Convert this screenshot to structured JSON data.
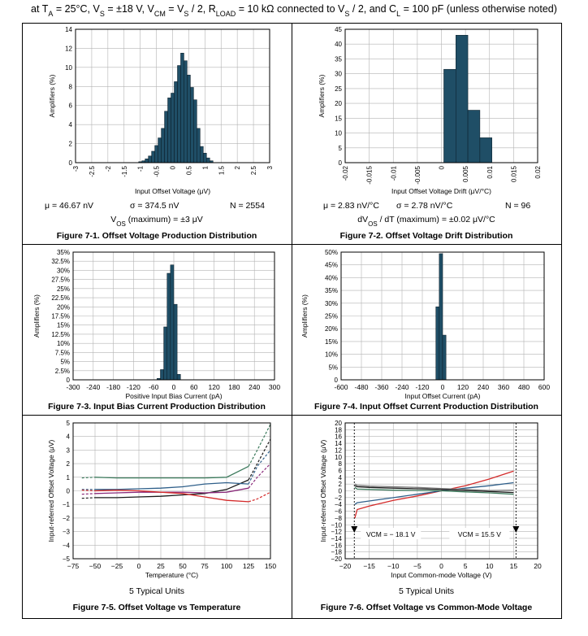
{
  "header": {
    "text": "at Tₐ = 25°C, Vₛ = ±18 V, VCM = VS / 2, RLOAD = 10 kΩ connected to VS / 2, and CL = 100 pF (unless otherwise noted)"
  },
  "colors": {
    "bar": "#1f4e66",
    "grid": "#b3b3b3",
    "frame": "#000000"
  },
  "figures": [
    {
      "id": "f71",
      "caption": "Figure 7-1. Offset Voltage Production Distribution",
      "stats": [
        {
          "text": "μ = 46.67 nV"
        },
        {
          "text": "σ = 374.5 nV"
        },
        {
          "text": "N = 2554"
        }
      ],
      "note": "VOS (maximum) = ±3 μV"
    },
    {
      "id": "f72",
      "caption": "Figure 7-2. Offset Voltage Drift Distribution",
      "stats": [
        {
          "text": "μ = 2.83 nV/°C"
        },
        {
          "text": "σ = 2.78 nV/°C"
        },
        {
          "text": "N = 96"
        }
      ],
      "note": "dVOS / dT (maximum) = ±0.02 μV/°C"
    },
    {
      "id": "f73",
      "caption": "Figure 7-3. Input Bias Current Production Distribution"
    },
    {
      "id": "f74",
      "caption": "Figure 7-4. Input Offset Current Production Distribution"
    },
    {
      "id": "f75",
      "caption": "Figure 7-5. Offset Voltage vs Temperature",
      "note": "5 Typical Units"
    },
    {
      "id": "f76",
      "caption": "Figure 7-6. Offset Voltage vs Common-Mode Voltage",
      "note": "5 Typical Units"
    }
  ],
  "chart_data": [
    {
      "id": "f71",
      "type": "bar",
      "xlabel": "Input Offset Voltage (μV)",
      "ylabel": "Amplifiers (%)",
      "xlim": [
        -3,
        3
      ],
      "ylim": [
        0,
        14
      ],
      "yticks": [
        "0",
        "2",
        "4",
        "6",
        "8",
        "10",
        "12",
        "14"
      ],
      "xticks": [
        "-3",
        "-2.5",
        "-2",
        "-1.5",
        "-1",
        "-0.5",
        "0",
        "0.5",
        "1",
        "1.5",
        "2",
        "2.5",
        "3"
      ],
      "bin_start": -1.05,
      "bin_width": 0.1,
      "values": [
        0.1,
        0.2,
        0.4,
        0.7,
        1.2,
        1.8,
        2.6,
        3.6,
        5.4,
        6.8,
        7.3,
        8.5,
        10.2,
        11.5,
        10.7,
        9.2,
        7.9,
        6.6,
        3.6,
        1.7,
        1.0,
        0.5,
        0.2
      ]
    },
    {
      "id": "f72",
      "type": "bar",
      "xlabel": "Input Offset Voltage Drift (μV/°C)",
      "ylabel": "Amplifiers (%)",
      "xlim": [
        -0.02,
        0.02
      ],
      "ylim": [
        0,
        45
      ],
      "yticks": [
        "0",
        "5",
        "10",
        "15",
        "20",
        "25",
        "30",
        "35",
        "40",
        "45"
      ],
      "xticks": [
        "-0.02",
        "-0.015",
        "-0.01",
        "-0.005",
        "0",
        "0.005",
        "0.01",
        "0.015",
        "0.02"
      ],
      "bin_start": 0.0005,
      "bin_width": 0.0025,
      "values": [
        31.5,
        43,
        17.7,
        8.4
      ]
    },
    {
      "id": "f73",
      "type": "bar",
      "xlabel": "Positive Input Bias Current (pA)",
      "ylabel": "Amplifiers (%)",
      "xlim": [
        -300,
        300
      ],
      "ylim": [
        0,
        35
      ],
      "yticks": [
        "0",
        "2.5%",
        "5%",
        "7.5%",
        "10%",
        "12.5%",
        "15%",
        "17.5%",
        "20%",
        "22.5%",
        "25%",
        "27.5%",
        "30%",
        "32.5%",
        "35%"
      ],
      "xticks": [
        "-300",
        "-240",
        "-180",
        "-120",
        "-60",
        "0",
        "60",
        "120",
        "180",
        "240",
        "300"
      ],
      "bin_start": -50,
      "bin_width": 10,
      "values": [
        0.4,
        2.8,
        14.5,
        29.2,
        31.5,
        20.7,
        1.5
      ]
    },
    {
      "id": "f74",
      "type": "bar",
      "xlabel": "Input Offset Current (pA)",
      "ylabel": "Amplifiers (%)",
      "xlim": [
        -600,
        600
      ],
      "ylim": [
        0,
        50
      ],
      "yticks": [
        "0",
        "5%",
        "10%",
        "15%",
        "20%",
        "25%",
        "30%",
        "35%",
        "40%",
        "45%",
        "50%"
      ],
      "xticks": [
        "-600",
        "-480",
        "-360",
        "-240",
        "-120",
        "0",
        "120",
        "240",
        "360",
        "480",
        "600"
      ],
      "bin_start": -40,
      "bin_width": 20,
      "values": [
        28.6,
        49.4,
        17.5
      ]
    },
    {
      "id": "f75",
      "type": "line",
      "xlabel": "Temperature (°C)",
      "ylabel": "Input-referred Offset Voltage (μV)",
      "xlim": [
        -75,
        150
      ],
      "ylim": [
        -5,
        5
      ],
      "yticks": [
        "−5",
        "−4",
        "−3",
        "−2",
        "−1",
        "0",
        "1",
        "2",
        "3",
        "4",
        "5"
      ],
      "xticks": [
        "−75",
        "−50",
        "−25",
        "0",
        "25",
        "50",
        "75",
        "100",
        "125",
        "150"
      ],
      "series": [
        {
          "color": "#3c7a5c",
          "x": [
            -50,
            -25,
            0,
            25,
            50,
            75,
            100,
            125
          ],
          "y": [
            1,
            0.95,
            0.95,
            0.95,
            0.95,
            0.95,
            1.0,
            1.8
          ],
          "dashed_x": [
            -65,
            -50
          ],
          "dashed_y": [
            0.95,
            1.0
          ],
          "hot_x": [
            125,
            135,
            150
          ],
          "hot_y": [
            1.8,
            3,
            4.9
          ]
        },
        {
          "color": "#1a1a1a",
          "x": [
            -50,
            -25,
            0,
            25,
            50,
            75,
            100,
            125
          ],
          "y": [
            -0.5,
            -0.5,
            -0.45,
            -0.4,
            -0.3,
            -0.2,
            0.1,
            0.8
          ],
          "dashed_x": [
            -65,
            -50
          ],
          "dashed_y": [
            -0.55,
            -0.5
          ],
          "hot_x": [
            125,
            135,
            150
          ],
          "hot_y": [
            0.8,
            2,
            3.8
          ]
        },
        {
          "color": "#2f5f8a",
          "x": [
            -50,
            -25,
            0,
            25,
            50,
            75,
            100,
            125
          ],
          "y": [
            0.1,
            0.1,
            0.15,
            0.2,
            0.3,
            0.5,
            0.6,
            0.5
          ],
          "dashed_x": [
            -65,
            -50
          ],
          "dashed_y": [
            0.1,
            0.1
          ],
          "hot_x": [
            125,
            135,
            150
          ],
          "hot_y": [
            0.5,
            1.8,
            3.0
          ]
        },
        {
          "color": "#8a2a7a",
          "x": [
            -50,
            -25,
            0,
            25,
            50,
            75,
            100,
            125
          ],
          "y": [
            -0.2,
            -0.15,
            -0.1,
            -0.1,
            -0.1,
            -0.15,
            -0.1,
            0.2
          ],
          "dashed_x": [
            -65,
            -50
          ],
          "dashed_y": [
            -0.25,
            -0.2
          ],
          "hot_x": [
            125,
            135,
            150
          ],
          "hot_y": [
            0.2,
            1.0,
            2.0
          ]
        },
        {
          "color": "#d42a2a",
          "x": [
            -50,
            -25,
            0,
            25,
            50,
            75,
            100,
            125
          ],
          "y": [
            0.0,
            0.05,
            0.0,
            -0.1,
            -0.2,
            -0.45,
            -0.7,
            -0.8
          ],
          "dashed_x": [
            -65,
            -50
          ],
          "dashed_y": [
            0.05,
            0.0
          ],
          "hot_x": [
            125,
            135,
            150
          ],
          "hot_y": [
            -0.8,
            -0.6,
            -0.1
          ]
        }
      ]
    },
    {
      "id": "f76",
      "type": "line",
      "xlabel": "Input Common-mode Voltage (V)",
      "ylabel": "Input-referred Offset Voltage (μV)",
      "xlim": [
        -20,
        20
      ],
      "ylim": [
        -20,
        20
      ],
      "yticks": [
        "−20",
        "−18",
        "−16",
        "−14",
        "−12",
        "−10",
        "−8",
        "−6",
        "−4",
        "−2",
        "0",
        "2",
        "4",
        "6",
        "8",
        "10",
        "12",
        "14",
        "16",
        "18",
        "20"
      ],
      "xticks": [
        "−20",
        "−15",
        "−10",
        "−5",
        "0",
        "5",
        "10",
        "15",
        "20"
      ],
      "annotations": [
        {
          "text": "VCM = − 18.1 V",
          "x": -18.1
        },
        {
          "text": "VCM = 15.5 V",
          "x": 15.5
        }
      ],
      "series": [
        {
          "color": "#d42a2a",
          "x": [
            -18,
            -17.5,
            -15,
            -10,
            -5,
            0,
            5,
            10,
            15
          ],
          "y": [
            -8,
            -5.5,
            -4.5,
            -2.8,
            -1.5,
            0,
            1.5,
            3.5,
            5.8
          ]
        },
        {
          "color": "#2f5f8a",
          "x": [
            -18,
            -17.5,
            -15,
            -10,
            -5,
            0,
            5,
            10,
            15
          ],
          "y": [
            -4,
            -3.5,
            -3,
            -2,
            -1,
            0,
            0.8,
            1.5,
            2.4
          ]
        },
        {
          "color": "#3c7a5c",
          "x": [
            -18,
            -17.5,
            -15,
            -10,
            -5,
            0,
            5,
            10,
            15
          ],
          "y": [
            1,
            0.5,
            0.4,
            0.2,
            0.1,
            0,
            -0.3,
            -0.6,
            -1.0
          ]
        },
        {
          "color": "#1a1a1a",
          "x": [
            -18,
            -17.5,
            -15,
            -10,
            -5,
            0,
            5,
            10,
            15
          ],
          "y": [
            1.5,
            1.2,
            1.0,
            0.8,
            0.6,
            0.4,
            0.1,
            -0.2,
            -0.5
          ]
        },
        {
          "color": "#7a7a7a",
          "x": [
            -18,
            -17.5,
            -15,
            -10,
            -5,
            0,
            5,
            10,
            15
          ],
          "y": [
            2,
            1.6,
            1.4,
            1.2,
            1.0,
            0.7,
            0.4,
            0.1,
            0.2
          ]
        }
      ]
    }
  ]
}
